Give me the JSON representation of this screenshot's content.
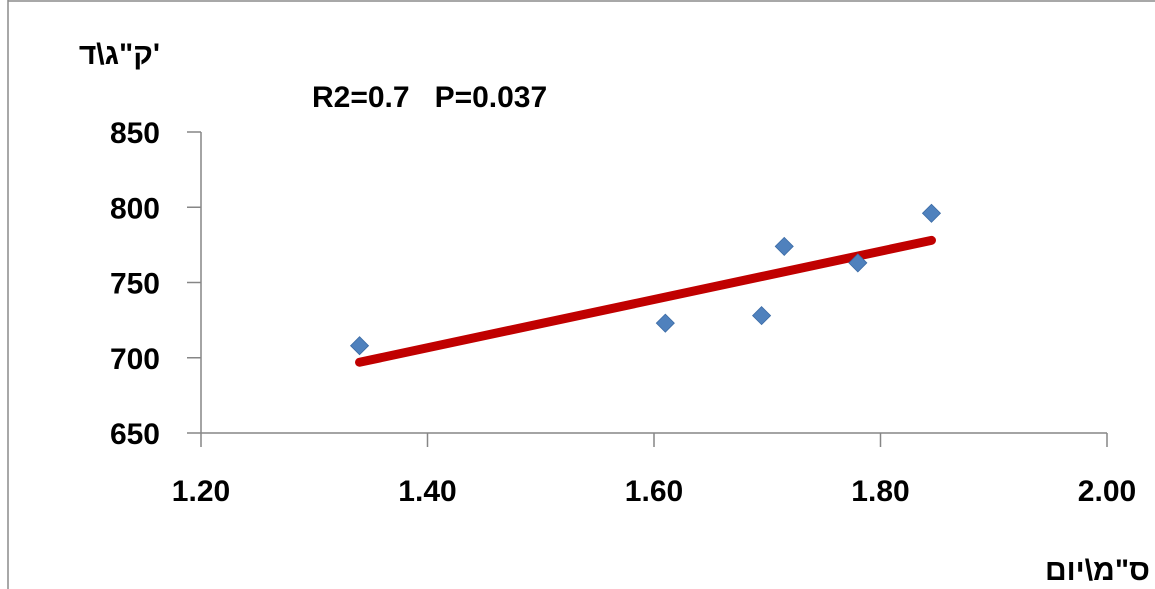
{
  "chart_data": {
    "type": "scatter",
    "title": "",
    "annotation": "R2=0.7   P=0.037",
    "ylabel": "ק\"ג\\ד'",
    "xlabel": "ס\"מ\\יום",
    "xlim": [
      1.2,
      2.0
    ],
    "ylim": [
      650,
      850
    ],
    "x_ticks": [
      "1.20",
      "1.40",
      "1.60",
      "1.80",
      "2.00"
    ],
    "y_ticks": [
      "850",
      "800",
      "750",
      "700",
      "650"
    ],
    "x_tick_values": [
      1.2,
      1.4,
      1.6,
      1.8,
      2.0
    ],
    "y_tick_values": [
      850,
      800,
      750,
      700,
      650
    ],
    "grid": false,
    "series": [
      {
        "points": [
          {
            "x": 1.34,
            "y": 708
          },
          {
            "x": 1.61,
            "y": 723
          },
          {
            "x": 1.695,
            "y": 728
          },
          {
            "x": 1.715,
            "y": 774
          },
          {
            "x": 1.78,
            "y": 763
          },
          {
            "x": 1.845,
            "y": 796
          }
        ],
        "marker_color": "#4f81bd"
      }
    ],
    "trendline": {
      "x": [
        1.34,
        1.845
      ],
      "y": [
        697,
        778
      ],
      "color": "#c00000"
    }
  }
}
